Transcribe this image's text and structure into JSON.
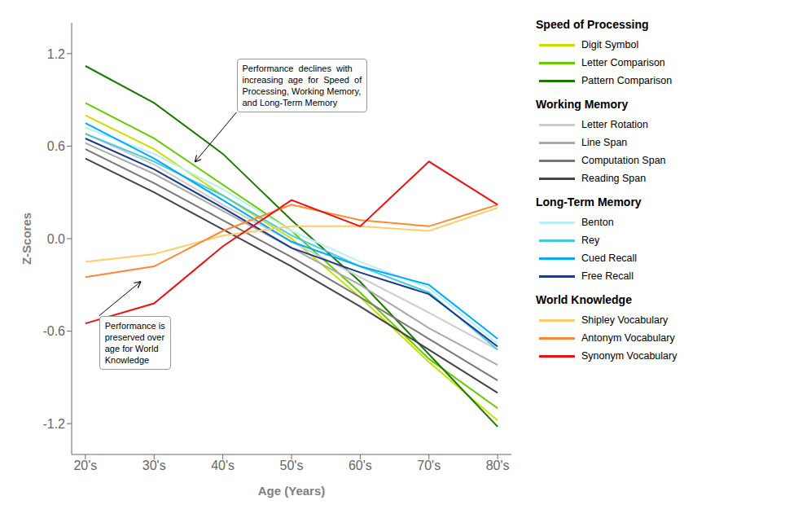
{
  "chart_data": {
    "type": "line",
    "x": [
      20,
      30,
      40,
      50,
      60,
      70,
      80
    ],
    "xlim": [
      18,
      82
    ],
    "xticks": [
      {
        "value": 20,
        "label": "20's"
      },
      {
        "value": 30,
        "label": "30's"
      },
      {
        "value": 40,
        "label": "40's"
      },
      {
        "value": 50,
        "label": "50's"
      },
      {
        "value": 60,
        "label": "60's"
      },
      {
        "value": 70,
        "label": "70's"
      },
      {
        "value": 80,
        "label": "80's"
      }
    ],
    "ylim": [
      -1.4,
      1.4
    ],
    "yticks": [
      -1.2,
      -0.6,
      {
        "value": 0.0,
        "label": "0.0"
      },
      0.6,
      1.2
    ],
    "xlabel": "Age (Years)",
    "ylabel": "Z-Scores",
    "grid": false,
    "legend": "right",
    "series": [
      {
        "name": "Digit Symbol",
        "group": "Speed of Processing",
        "color": "#c8e000",
        "values": [
          0.8,
          0.58,
          0.28,
          0.0,
          -0.38,
          -0.8,
          -1.18
        ]
      },
      {
        "name": "Letter Comparison",
        "group": "Speed of Processing",
        "color": "#66cc00",
        "values": [
          0.88,
          0.65,
          0.35,
          0.05,
          -0.35,
          -0.78,
          -1.1
        ]
      },
      {
        "name": "Pattern Comparison",
        "group": "Speed of Processing",
        "color": "#1a7a00",
        "values": [
          1.12,
          0.88,
          0.55,
          0.12,
          -0.28,
          -0.75,
          -1.22
        ]
      },
      {
        "name": "Letter Rotation",
        "group": "Working Memory",
        "color": "#cccccc",
        "values": [
          0.68,
          0.48,
          0.22,
          -0.02,
          -0.25,
          -0.48,
          -0.72
        ]
      },
      {
        "name": "Line Span",
        "group": "Working Memory",
        "color": "#aaaaaa",
        "values": [
          0.62,
          0.42,
          0.18,
          -0.06,
          -0.3,
          -0.58,
          -0.82
        ]
      },
      {
        "name": "Computation Span",
        "group": "Working Memory",
        "color": "#777777",
        "values": [
          0.58,
          0.36,
          0.12,
          -0.12,
          -0.38,
          -0.65,
          -0.92
        ]
      },
      {
        "name": "Reading Span",
        "group": "Working Memory",
        "color": "#444444",
        "values": [
          0.52,
          0.3,
          0.06,
          -0.18,
          -0.44,
          -0.72,
          -1.0
        ]
      },
      {
        "name": "Benton",
        "group": "Long-Term Memory",
        "color": "#b8f0f8",
        "values": [
          0.72,
          0.55,
          0.32,
          0.05,
          -0.15,
          -0.32,
          -0.68
        ]
      },
      {
        "name": "Rey",
        "group": "Long-Term Memory",
        "color": "#44ccdd",
        "values": [
          0.68,
          0.5,
          0.28,
          0.02,
          -0.18,
          -0.35,
          -0.72
        ]
      },
      {
        "name": "Cued Recall",
        "group": "Long-Term Memory",
        "color": "#00aaff",
        "values": [
          0.75,
          0.52,
          0.25,
          -0.02,
          -0.18,
          -0.3,
          -0.65
        ]
      },
      {
        "name": "Free Recall",
        "group": "Long-Term Memory",
        "color": "#1a3a8a",
        "values": [
          0.65,
          0.45,
          0.2,
          -0.06,
          -0.22,
          -0.36,
          -0.7
        ]
      },
      {
        "name": "Shipley Vocabulary",
        "group": "World Knowledge",
        "color": "#ffcc66",
        "values": [
          -0.15,
          -0.1,
          0.02,
          0.08,
          0.08,
          0.05,
          0.2
        ]
      },
      {
        "name": "Antonym Vocabulary",
        "group": "World Knowledge",
        "color": "#ff8833",
        "values": [
          -0.25,
          -0.18,
          0.05,
          0.22,
          0.12,
          0.08,
          0.22
        ]
      },
      {
        "name": "Synonym Vocabulary",
        "group": "World Knowledge",
        "color": "#ee1111",
        "values": [
          -0.55,
          -0.42,
          -0.05,
          0.25,
          0.08,
          0.5,
          0.22
        ]
      }
    ],
    "annotations": [
      {
        "text": "Performance  declines  with\nincreasing  age  for  Speed  of\nProcessing, Working Memory,\nand Long-Term Memory",
        "x": 36,
        "y": 0.5,
        "text_x": 42,
        "text_y": 0.82
      },
      {
        "text": "Performance is\npreserved over\nage for World\nKnowledge",
        "x": 28,
        "y": -0.28,
        "text_x": 22,
        "text_y": -0.5
      }
    ]
  }
}
